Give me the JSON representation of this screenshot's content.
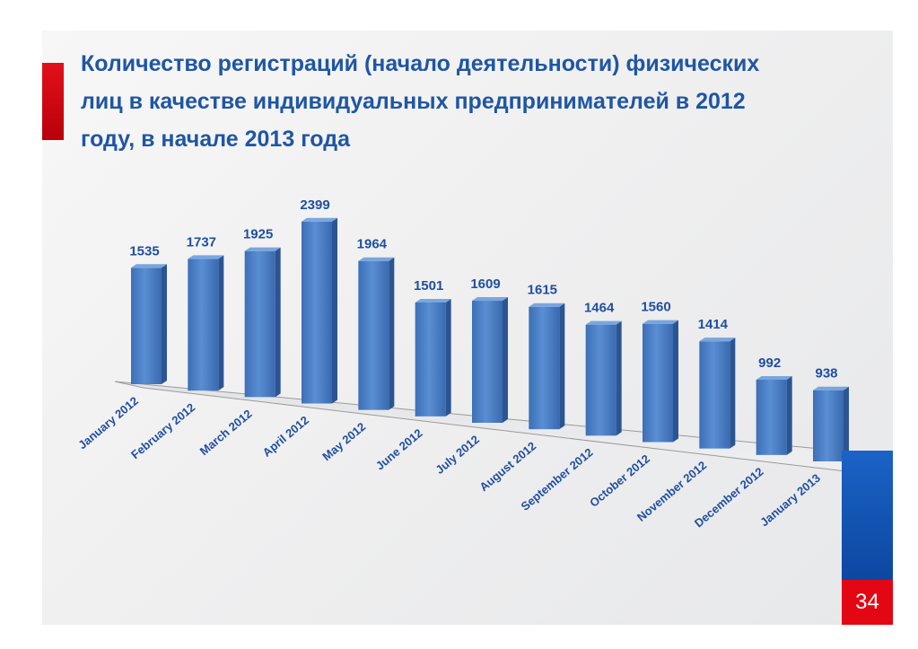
{
  "title": "Количество регистраций  (начало деятельности) физических лиц в качестве индивидуальных предпринимателей в 2012 году, в начале 2013 года",
  "page_number": "34",
  "colors": {
    "title": "#1f56a3",
    "bar": "#4a7fc4",
    "label": "#1f4fa0",
    "accent_red": "#e30613",
    "accent_blue": "#1a63c6"
  },
  "chart_data": {
    "type": "bar",
    "categories": [
      "January 2012",
      "February 2012",
      "March 2012",
      "April 2012",
      "May 2012",
      "June 2012",
      "July 2012",
      "August 2012",
      "September 2012",
      "October 2012",
      "November 2012",
      "December 2012",
      "January 2013"
    ],
    "values": [
      1535,
      1737,
      1925,
      2399,
      1964,
      1501,
      1609,
      1615,
      1464,
      1560,
      1414,
      992,
      938
    ],
    "data_labels": [
      "1535",
      "1737",
      "1925",
      "2399",
      "1964",
      "1501",
      "1609",
      "1615",
      "1464",
      "1560",
      "1414",
      "992",
      "938"
    ],
    "style": "3d-perspective",
    "grid": false,
    "legend": "none"
  }
}
